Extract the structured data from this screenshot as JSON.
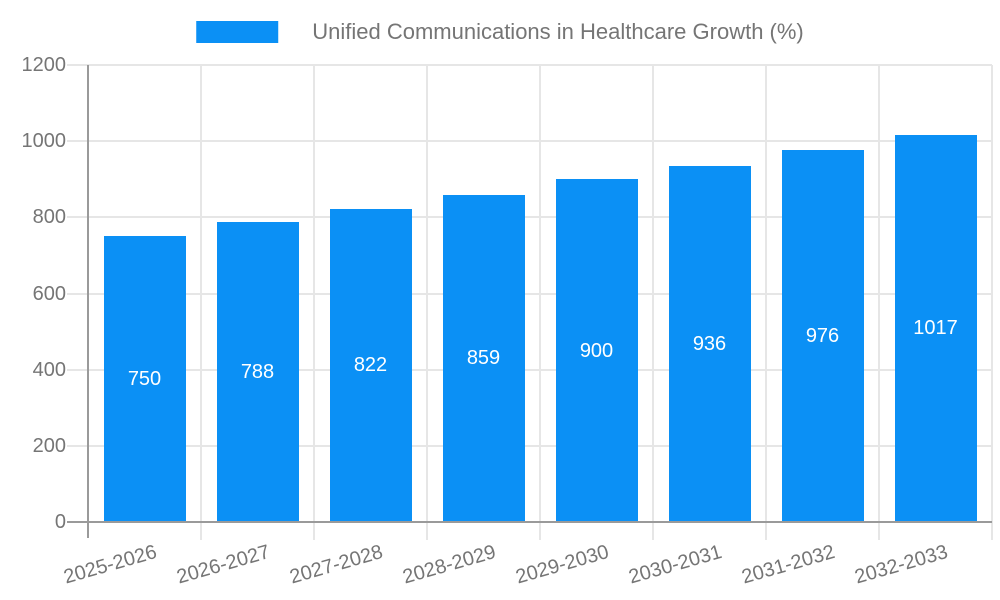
{
  "legend": {
    "label": "Unified Communications in Healthcare Growth (%)"
  },
  "chart_data": {
    "type": "bar",
    "title": "Unified Communications in Healthcare Growth (%)",
    "categories": [
      "2025-2026",
      "2026-2027",
      "2027-2028",
      "2028-2029",
      "2029-2030",
      "2030-2031",
      "2031-2032",
      "2032-2033"
    ],
    "series": [
      {
        "name": "Unified Communications in Healthcare Growth (%)",
        "values": [
          750,
          788,
          822,
          859,
          900,
          936,
          976,
          1017
        ]
      }
    ],
    "value_labels": [
      "750",
      "788",
      "822",
      "859",
      "900",
      "936",
      "976",
      "1017"
    ],
    "xlabel": "",
    "ylabel": "",
    "ylim": [
      0,
      1200
    ],
    "yticks": [
      0,
      200,
      400,
      600,
      800,
      1000,
      1200
    ],
    "grid": true,
    "legend_position": "top",
    "colors": {
      "bar": "#0b90f5",
      "grid": "#e6e6e6",
      "axis": "#9a9a9a",
      "tick_text": "#757575",
      "value_label": "#ffffff",
      "background": "#ffffff"
    }
  }
}
